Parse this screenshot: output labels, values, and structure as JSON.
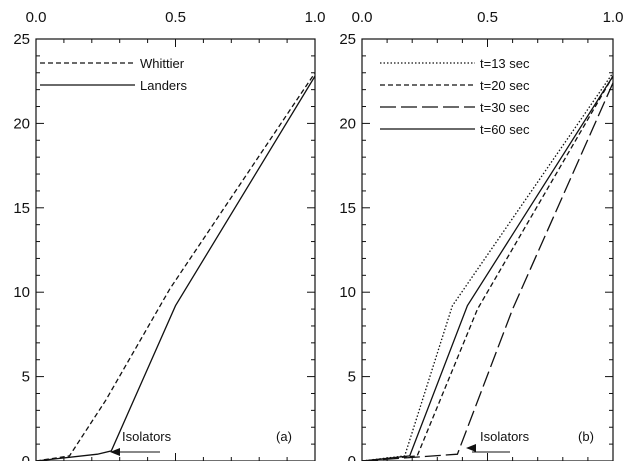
{
  "chart_data": [
    {
      "type": "line",
      "panel_label": "(a)",
      "xlim": [
        0,
        1.0
      ],
      "ylim": [
        0,
        25
      ],
      "x_ticks": [
        "0.0",
        "0.5",
        "1.0"
      ],
      "y_ticks": [
        "0",
        "5",
        "10",
        "15",
        "20",
        "25"
      ],
      "grid": false,
      "legend_position": "top-right",
      "annotation": "Isolators",
      "series": [
        {
          "name": "Whittier",
          "style": "dashed",
          "x": [
            0,
            0.12,
            0.25,
            0.48,
            1.0
          ],
          "y": [
            0,
            0.3,
            3.6,
            10.2,
            23.0
          ]
        },
        {
          "name": "Landers",
          "style": "solid",
          "x": [
            0,
            0.22,
            0.27,
            0.5,
            1.0
          ],
          "y": [
            0,
            0.4,
            0.6,
            9.2,
            22.8
          ]
        }
      ]
    },
    {
      "type": "line",
      "panel_label": "(b)",
      "xlim": [
        0,
        1.0
      ],
      "ylim": [
        0,
        25
      ],
      "x_ticks": [
        "0.0",
        "0.5",
        "1.0"
      ],
      "y_ticks": [
        "0",
        "5",
        "10",
        "15",
        "20",
        "25"
      ],
      "grid": false,
      "legend_position": "top-right",
      "annotation": "Isolators",
      "series": [
        {
          "name": "t=13 sec",
          "style": "dotted",
          "x": [
            0,
            0.17,
            0.36,
            1.0
          ],
          "y": [
            0,
            0.3,
            9.2,
            23.0
          ]
        },
        {
          "name": "t=20 sec",
          "style": "dashed",
          "x": [
            0,
            0.22,
            0.46,
            1.0
          ],
          "y": [
            0,
            0.3,
            9.0,
            22.8
          ]
        },
        {
          "name": "t=30 sec",
          "style": "longdash",
          "x": [
            0,
            0.38,
            0.6,
            1.0
          ],
          "y": [
            0,
            0.4,
            9.0,
            22.4
          ]
        },
        {
          "name": "t=60 sec",
          "style": "solid",
          "x": [
            0,
            0.19,
            0.42,
            1.0
          ],
          "y": [
            0,
            0.3,
            9.2,
            22.8
          ]
        }
      ]
    }
  ]
}
